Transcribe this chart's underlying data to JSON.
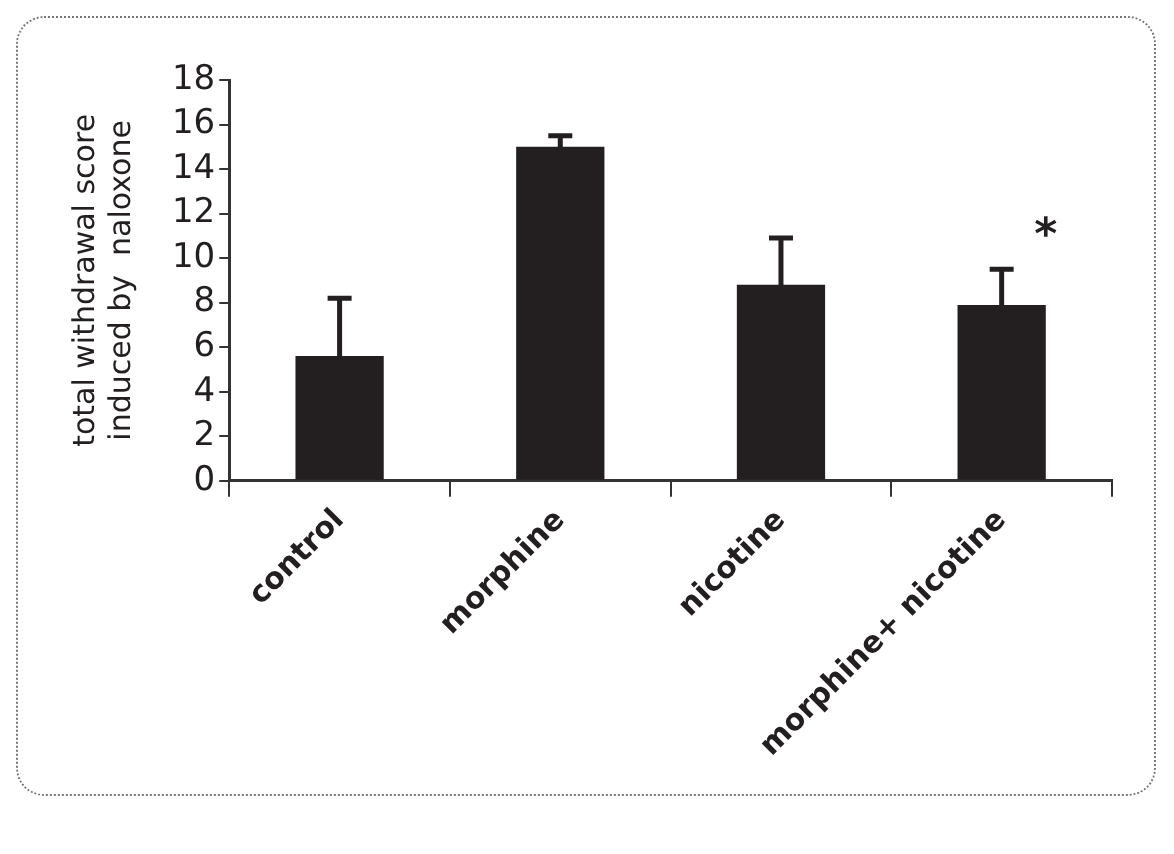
{
  "chart_data": {
    "type": "bar",
    "ylabel": "total withdrawal score\ninduced by  naloxone",
    "categories": [
      "control",
      "morphine",
      "nicotine",
      "morphine+ nicotine"
    ],
    "values": [
      5.6,
      15,
      8.8,
      7.9
    ],
    "errors": [
      2.6,
      0.5,
      2.1,
      1.6
    ],
    "color": "#231f20",
    "ylim": [
      0,
      18
    ],
    "yticks": [
      0,
      2,
      4,
      6,
      8,
      10,
      12,
      14,
      16,
      18
    ],
    "grid": false,
    "legend": false,
    "annotations": [
      "*"
    ]
  }
}
